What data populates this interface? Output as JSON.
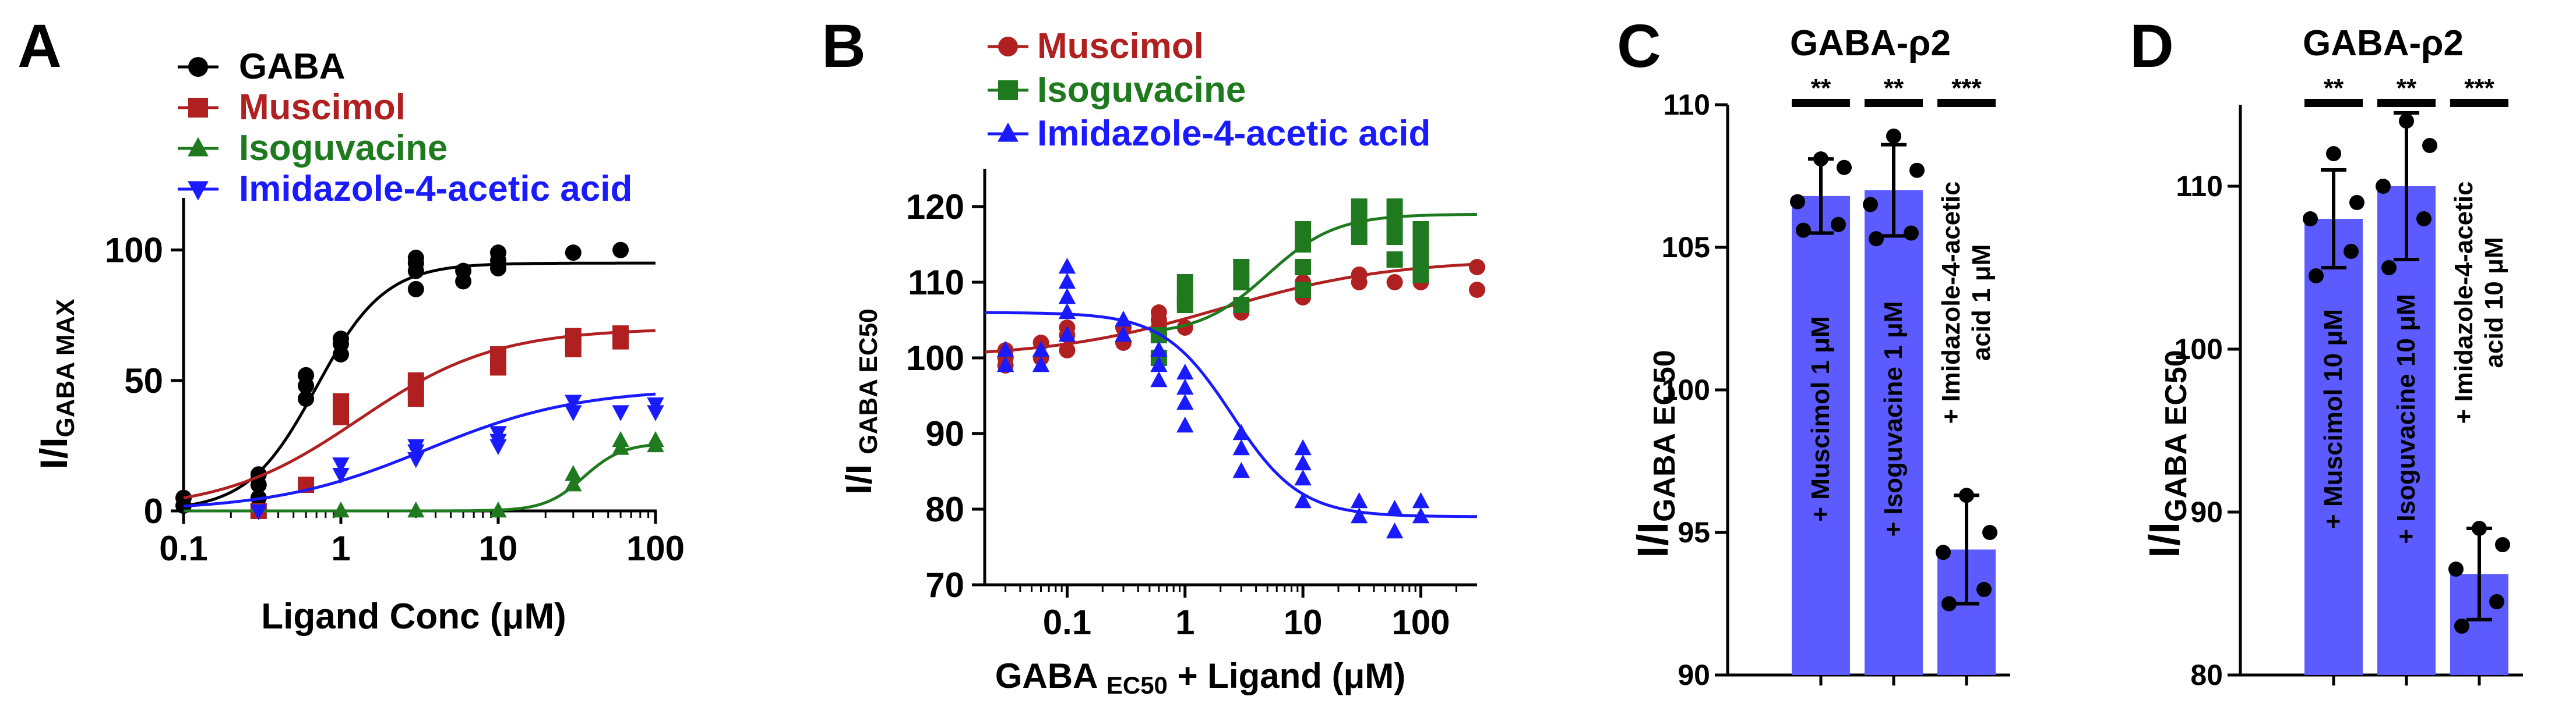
{
  "figure": {
    "panels": [
      {
        "letter": "A",
        "sub": ""
      },
      {
        "letter": "B",
        "sub": ""
      },
      {
        "letter": "C",
        "sub": "GABA-ρ2"
      },
      {
        "letter": "D",
        "sub": "GABA-ρ2"
      }
    ]
  },
  "chart_data": [
    {
      "panel": "A",
      "type": "line",
      "xscale": "log",
      "xlabel_main": "Ligand Conc (",
      "xlabel_mu": "μ",
      "xlabel_tail": "M)",
      "ylabel_main": "I/I",
      "ylabel_sub": "GABA MAX",
      "xlim": [
        0.1,
        100
      ],
      "ylim": [
        0,
        120
      ],
      "xticks": [
        0.1,
        1,
        10,
        100
      ],
      "xtick_labels": [
        "0.1",
        "1",
        "10",
        "100"
      ],
      "yticks": [
        0,
        50,
        100
      ],
      "ytick_labels": [
        "0",
        "50",
        "100"
      ],
      "legend_position": "top-left",
      "series": [
        {
          "name": "GABA",
          "color": "#000000",
          "marker": "circle",
          "ec50": 0.7,
          "hill": 2.0,
          "max": 95,
          "points": [
            [
              0.1,
              2
            ],
            [
              0.1,
              5
            ],
            [
              0.3,
              5
            ],
            [
              0.3,
              10
            ],
            [
              0.3,
              14
            ],
            [
              0.6,
              43
            ],
            [
              0.6,
              48
            ],
            [
              0.6,
              52
            ],
            [
              1,
              60
            ],
            [
              1,
              64
            ],
            [
              1,
              66
            ],
            [
              3,
              85
            ],
            [
              3,
              92
            ],
            [
              3,
              95
            ],
            [
              3,
              97
            ],
            [
              6,
              88
            ],
            [
              6,
              92
            ],
            [
              10,
              93
            ],
            [
              10,
              96
            ],
            [
              10,
              99
            ],
            [
              30,
              99
            ],
            [
              60,
              100
            ]
          ]
        },
        {
          "name": "Muscimol",
          "color": "#b02020",
          "marker": "square",
          "ec50": 1.3,
          "hill": 1.0,
          "max": 70,
          "points": [
            [
              0.3,
              0
            ],
            [
              0.6,
              10
            ],
            [
              1,
              36
            ],
            [
              1,
              40
            ],
            [
              1,
              42
            ],
            [
              3,
              43
            ],
            [
              3,
              47
            ],
            [
              3,
              50
            ],
            [
              10,
              55
            ],
            [
              10,
              58
            ],
            [
              10,
              60
            ],
            [
              30,
              62
            ],
            [
              30,
              65
            ],
            [
              30,
              67
            ],
            [
              60,
              65
            ],
            [
              60,
              68
            ]
          ]
        },
        {
          "name": "Isoguvacine",
          "color": "#1f7a1f",
          "marker": "triangle-up",
          "ec50": 35,
          "hill": 3.5,
          "max": 26,
          "points": [
            [
              1,
              0
            ],
            [
              3,
              0
            ],
            [
              10,
              0
            ],
            [
              30,
              10
            ],
            [
              30,
              14
            ],
            [
              60,
              24
            ],
            [
              60,
              27
            ],
            [
              100,
              25
            ],
            [
              100,
              27
            ]
          ]
        },
        {
          "name": "Imidazole-4-acetic acid",
          "color": "#1a1aff",
          "marker": "triangle-down",
          "ec50": 3.5,
          "hill": 0.9,
          "max": 47,
          "points": [
            [
              0.3,
              0
            ],
            [
              1,
              14
            ],
            [
              1,
              18
            ],
            [
              3,
              20
            ],
            [
              3,
              23
            ],
            [
              3,
              25
            ],
            [
              10,
              25
            ],
            [
              10,
              27
            ],
            [
              10,
              30
            ],
            [
              30,
              38
            ],
            [
              30,
              42
            ],
            [
              60,
              38
            ],
            [
              100,
              38
            ],
            [
              100,
              41
            ]
          ]
        }
      ]
    },
    {
      "panel": "B",
      "type": "line",
      "xscale": "log",
      "xlabel_main": "GABA ",
      "xlabel_sub": "EC50",
      "xlabel_mid": " + Ligand (",
      "xlabel_mu": "μ",
      "xlabel_tail": "M)",
      "ylabel_main": "I/I ",
      "ylabel_sub": "GABA EC50",
      "xlim": [
        0.02,
        300
      ],
      "ylim": [
        70,
        125
      ],
      "xticks": [
        0.1,
        1,
        10,
        100
      ],
      "xtick_labels": [
        "0.1",
        "1",
        "10",
        "100"
      ],
      "yticks": [
        70,
        80,
        90,
        100,
        110,
        120
      ],
      "ytick_labels": [
        "70",
        "80",
        "90",
        "100",
        "110",
        "120"
      ],
      "legend_position": "top",
      "series": [
        {
          "name": "Muscimol",
          "color": "#b02020",
          "marker": "circle",
          "fit": "increase",
          "base": 100,
          "top": 113,
          "ec50": 2,
          "hill": 0.6,
          "points": [
            [
              0.03,
              99
            ],
            [
              0.03,
              100
            ],
            [
              0.03,
              101
            ],
            [
              0.06,
              100
            ],
            [
              0.06,
              102
            ],
            [
              0.1,
              101
            ],
            [
              0.1,
              103
            ],
            [
              0.1,
              104
            ],
            [
              0.3,
              102
            ],
            [
              0.3,
              104
            ],
            [
              0.6,
              104
            ],
            [
              0.6,
              105
            ],
            [
              0.6,
              106
            ],
            [
              1,
              107
            ],
            [
              1,
              104
            ],
            [
              3,
              106
            ],
            [
              3,
              107
            ],
            [
              10,
              108
            ],
            [
              10,
              110
            ],
            [
              10,
              112
            ],
            [
              30,
              110
            ],
            [
              30,
              111
            ],
            [
              60,
              110
            ],
            [
              100,
              110
            ],
            [
              100,
              111
            ],
            [
              300,
              112
            ],
            [
              300,
              109
            ]
          ]
        },
        {
          "name": "Isoguvacine",
          "color": "#1f7a1f",
          "marker": "square",
          "fit": "increase",
          "base": 103,
          "top": 119,
          "ec50": 5,
          "hill": 1.5,
          "points": [
            [
              0.6,
              100
            ],
            [
              0.6,
              103
            ],
            [
              1,
              107
            ],
            [
              1,
              108
            ],
            [
              1,
              110
            ],
            [
              3,
              107
            ],
            [
              3,
              110
            ],
            [
              3,
              112
            ],
            [
              10,
              109
            ],
            [
              10,
              112
            ],
            [
              10,
              115
            ],
            [
              10,
              117
            ],
            [
              30,
              116
            ],
            [
              30,
              118
            ],
            [
              30,
              120
            ],
            [
              60,
              113
            ],
            [
              60,
              116
            ],
            [
              60,
              118
            ],
            [
              60,
              120
            ],
            [
              100,
              111
            ],
            [
              100,
              113
            ],
            [
              100,
              115
            ],
            [
              100,
              117
            ]
          ]
        },
        {
          "name": "Imidazole-4-acetic acid",
          "color": "#1a1aff",
          "marker": "triangle-up",
          "fit": "decrease",
          "base": 106,
          "top": 79,
          "ec50": 2.5,
          "hill": 1.5,
          "points": [
            [
              0.03,
              99
            ],
            [
              0.03,
              101
            ],
            [
              0.06,
              99
            ],
            [
              0.06,
              101
            ],
            [
              0.1,
              103
            ],
            [
              0.1,
              106
            ],
            [
              0.1,
              108
            ],
            [
              0.1,
              110
            ],
            [
              0.1,
              112
            ],
            [
              0.3,
              103
            ],
            [
              0.3,
              105
            ],
            [
              0.6,
              97
            ],
            [
              0.6,
              99
            ],
            [
              0.6,
              101
            ],
            [
              1,
              91
            ],
            [
              1,
              94
            ],
            [
              1,
              96
            ],
            [
              1,
              98
            ],
            [
              3,
              85
            ],
            [
              3,
              88
            ],
            [
              3,
              90
            ],
            [
              10,
              81
            ],
            [
              10,
              84
            ],
            [
              10,
              86
            ],
            [
              10,
              88
            ],
            [
              30,
              79
            ],
            [
              30,
              81
            ],
            [
              60,
              77
            ],
            [
              60,
              80
            ],
            [
              100,
              79
            ],
            [
              100,
              81
            ]
          ]
        }
      ]
    },
    {
      "panel": "C",
      "type": "bar",
      "title": "GABA-ρ2",
      "ylabel_main": "I/I",
      "ylabel_sub": "GABA EC50",
      "ylim": [
        90,
        110
      ],
      "yticks": [
        90,
        95,
        100,
        105,
        110
      ],
      "ytick_labels": [
        "90",
        "95",
        "100",
        "105",
        "110"
      ],
      "bar_color": "#5b5bff",
      "bars": [
        {
          "lines": [
            "+ Muscimol 1  μM"
          ],
          "value": 106.8,
          "sd": 1.3,
          "sig": "**",
          "points": [
            108.1,
            107.8,
            106.6,
            105.8,
            105.6
          ]
        },
        {
          "lines": [
            "+ Isoguvacine  1  μM"
          ],
          "value": 107.0,
          "sd": 1.6,
          "sig": "**",
          "points": [
            108.9,
            107.7,
            106.5,
            105.5,
            105.3
          ]
        },
        {
          "lines": [
            "+ Imidazole-4-acetic",
            "acid  1  μM"
          ],
          "value": 94.4,
          "sd": 1.9,
          "sig": "***",
          "points": [
            96.3,
            95.0,
            94.3,
            93.0,
            92.5
          ]
        }
      ]
    },
    {
      "panel": "D",
      "type": "bar",
      "title": "GABA-ρ2",
      "ylabel_main": "I/I",
      "ylabel_sub": "GABA EC50",
      "ylim": [
        80,
        115
      ],
      "yticks": [
        80,
        90,
        100,
        110
      ],
      "ytick_labels": [
        "80",
        "90",
        "100",
        "110"
      ],
      "bar_color": "#5b5bff",
      "bars": [
        {
          "lines": [
            "+ Muscimol 10  μM"
          ],
          "value": 108.0,
          "sd": 3.0,
          "sig": "**",
          "points": [
            112.0,
            109.0,
            108.0,
            106.0,
            104.5
          ]
        },
        {
          "lines": [
            "+ Isoguvacine  10  μM"
          ],
          "value": 110.0,
          "sd": 4.5,
          "sig": "**",
          "points": [
            114.0,
            112.5,
            110.0,
            108.0,
            105.0
          ]
        },
        {
          "lines": [
            "+ Imidazole-4-acetic",
            "acid  10  μM"
          ],
          "value": 86.2,
          "sd": 2.8,
          "sig": "***",
          "points": [
            89.0,
            88.0,
            86.5,
            84.5,
            83.0
          ]
        }
      ]
    }
  ]
}
